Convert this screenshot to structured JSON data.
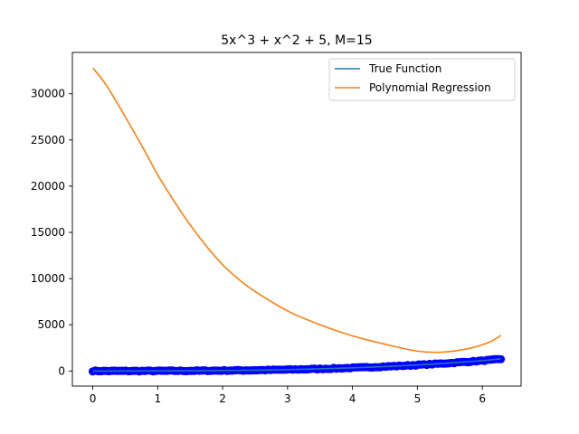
{
  "chart_data": {
    "type": "line",
    "title": "5x^3 + x^2 + 5, M=15",
    "xlabel": "",
    "ylabel": "",
    "xlim": [
      -0.314,
      6.597
    ],
    "ylim": [
      -1630,
      34470
    ],
    "xticks": [
      0,
      1,
      2,
      3,
      4,
      5,
      6
    ],
    "yticks": [
      0,
      5000,
      10000,
      15000,
      20000,
      25000,
      30000
    ],
    "grid": false,
    "legend_position": "top-right",
    "series": [
      {
        "name": "True Function",
        "color": "#1f77b4",
        "x": [
          0,
          0.5,
          1,
          1.5,
          2,
          2.5,
          3,
          3.5,
          4,
          4.5,
          5,
          5.5,
          6,
          6.283
        ],
        "y": [
          5,
          5.9,
          11,
          24.1,
          49,
          89.4,
          149,
          231.6,
          341,
          481.1,
          655,
          866.4,
          1121,
          1308.2
        ]
      },
      {
        "name": "Polynomial Regression",
        "color": "#ff7f0e",
        "x": [
          0,
          0.2,
          0.5,
          0.8,
          1,
          1.25,
          1.5,
          1.75,
          2,
          2.25,
          2.5,
          3,
          3.5,
          4,
          4.5,
          5,
          5.4,
          5.8,
          6.1,
          6.283
        ],
        "y": [
          32800,
          31000,
          27500,
          23800,
          21200,
          18400,
          15800,
          13500,
          11500,
          9900,
          8600,
          6500,
          5000,
          3800,
          2900,
          2150,
          2050,
          2450,
          3100,
          3850
        ]
      },
      {
        "name": "",
        "type": "scatter",
        "color": "#0000ff",
        "x_start": 0,
        "x_end": 6.283,
        "count": 150,
        "noise": 50
      }
    ]
  }
}
